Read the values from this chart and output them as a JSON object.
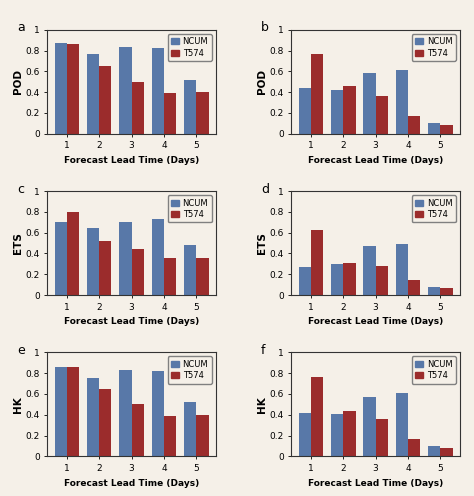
{
  "panels": [
    {
      "label": "a",
      "ylabel": "POD",
      "ncum": [
        0.87,
        0.77,
        0.83,
        0.82,
        0.52
      ],
      "t574": [
        0.86,
        0.65,
        0.5,
        0.39,
        0.4
      ]
    },
    {
      "label": "b",
      "ylabel": "POD",
      "ncum": [
        0.44,
        0.42,
        0.58,
        0.61,
        0.1
      ],
      "t574": [
        0.77,
        0.46,
        0.36,
        0.17,
        0.08
      ]
    },
    {
      "label": "c",
      "ylabel": "ETS",
      "ncum": [
        0.7,
        0.64,
        0.7,
        0.73,
        0.48
      ],
      "t574": [
        0.8,
        0.52,
        0.44,
        0.36,
        0.36
      ]
    },
    {
      "label": "d",
      "ylabel": "ETS",
      "ncum": [
        0.27,
        0.3,
        0.47,
        0.49,
        0.08
      ],
      "t574": [
        0.63,
        0.31,
        0.28,
        0.14,
        0.07
      ]
    },
    {
      "label": "e",
      "ylabel": "HK",
      "ncum": [
        0.86,
        0.75,
        0.83,
        0.82,
        0.52
      ],
      "t574": [
        0.86,
        0.65,
        0.5,
        0.39,
        0.4
      ]
    },
    {
      "label": "f",
      "ylabel": "HK",
      "ncum": [
        0.42,
        0.41,
        0.57,
        0.61,
        0.1
      ],
      "t574": [
        0.76,
        0.44,
        0.36,
        0.17,
        0.08
      ]
    }
  ],
  "ncum_color": "#5878a8",
  "t574_color": "#9b2c2c",
  "xlabel": "Forecast Lead Time (Days)",
  "days": [
    1,
    2,
    3,
    4,
    5
  ],
  "ylim": [
    0,
    1.0
  ],
  "yticks": [
    0,
    0.2,
    0.4,
    0.6,
    0.8,
    1
  ],
  "ytick_labels": [
    "0",
    "0.2",
    "0.4",
    "0.6",
    "0.8",
    "1"
  ],
  "bar_width": 0.38,
  "legend_labels": [
    "NCUM",
    "T574"
  ],
  "fig_facecolor": "#f5f0e8",
  "axes_facecolor": "#f5f0e8"
}
